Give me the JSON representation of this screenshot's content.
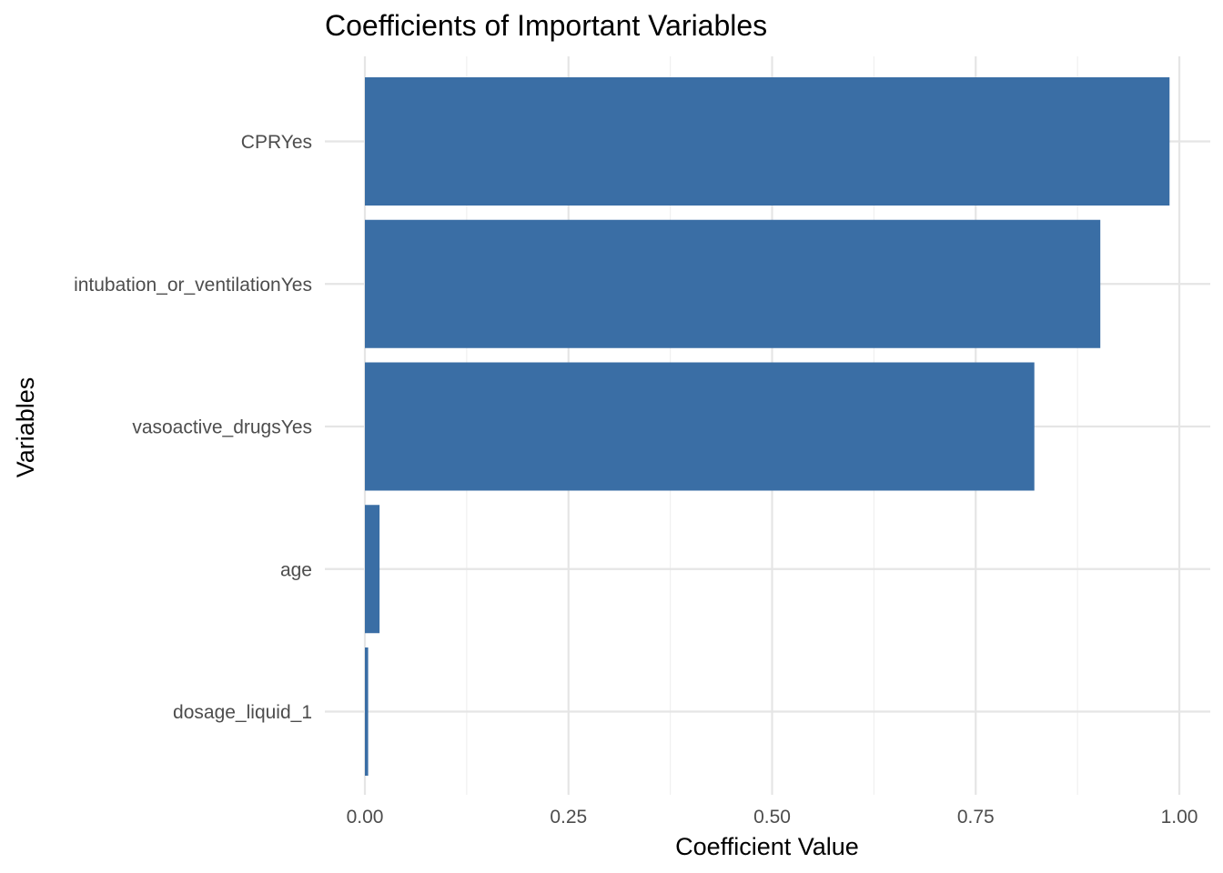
{
  "chart_data": {
    "type": "bar",
    "orientation": "horizontal",
    "title": "Coefficients of Important Variables",
    "xlabel": "Coefficient Value",
    "ylabel": "Variables",
    "categories": [
      "CPRYes",
      "intubation_or_ventilationYes",
      "vasoactive_drugsYes",
      "age",
      "dosage_liquid_1"
    ],
    "values": [
      0.988,
      0.903,
      0.822,
      0.018,
      0.004
    ],
    "xlim": [
      0,
      1
    ],
    "xticks": [
      0.0,
      0.25,
      0.5,
      0.75,
      1.0
    ],
    "xtick_labels": [
      "0.00",
      "0.25",
      "0.50",
      "0.75",
      "1.00"
    ],
    "bar_color": "#3A6EA5",
    "grid": true,
    "legend": "none"
  }
}
